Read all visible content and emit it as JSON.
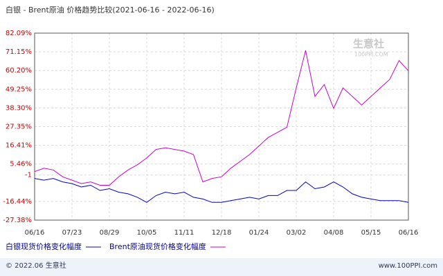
{
  "chart_data": {
    "type": "line",
    "title": "白银 - Brent原油 价格趋势比较(2021-06-16 - 2022-06-16)",
    "categories": [
      "06/16",
      null,
      null,
      null,
      "07/23",
      null,
      null,
      null,
      "08/29",
      null,
      null,
      null,
      "10/05",
      null,
      null,
      null,
      "11/11",
      null,
      null,
      null,
      "12/18",
      null,
      null,
      null,
      "01/24",
      null,
      null,
      null,
      "03/02",
      null,
      null,
      null,
      "04/08",
      null,
      null,
      null,
      "05/15",
      null,
      null,
      null,
      "06/16"
    ],
    "series": [
      {
        "name": "白银现货价格变化幅度",
        "color": "#0000cc",
        "values": [
          -3,
          -4,
          -3,
          -5,
          -6,
          -8,
          -7,
          -10,
          -9,
          -11,
          -12,
          -14,
          -17,
          -13,
          -11,
          -12,
          -11,
          -14,
          -15,
          -17,
          -17,
          -16,
          -15,
          -14,
          -15,
          -13,
          -13,
          -10,
          -10,
          -5,
          -9,
          -8,
          -5,
          -8,
          -12,
          -14,
          -15,
          -16,
          -16,
          -16,
          -17
        ]
      },
      {
        "name": "Brent原油现货价格变化幅度",
        "color": "#cc00cc",
        "values": [
          1,
          3,
          2,
          -2,
          -4,
          -6,
          -5,
          -7,
          -7,
          -2,
          2,
          5,
          9,
          14,
          15,
          14,
          13,
          11,
          -5,
          -3,
          -2,
          3,
          7,
          11,
          16,
          21,
          24,
          27,
          50,
          72,
          45,
          52,
          38,
          50,
          45,
          40,
          45,
          50,
          55,
          66,
          60
        ]
      }
    ],
    "ylim": [
      -27.38,
      82.09
    ],
    "yticks": [
      {
        "value": -27.38,
        "label": "-27.38%"
      },
      {
        "value": -16.44,
        "label": "-16.44%"
      },
      -1,
      {
        "value": 5.46,
        "label": "5.46%"
      },
      {
        "value": 16.41,
        "label": "16.41%"
      },
      {
        "value": 27.35,
        "label": "27.35%"
      },
      {
        "value": 38.3,
        "label": "38.30%"
      },
      {
        "value": 49.25,
        "label": "49.25%"
      },
      {
        "value": 60.2,
        "label": "60.20%"
      },
      {
        "value": 71.15,
        "label": "71.15%"
      },
      {
        "value": 82.09,
        "label": "82.09%"
      }
    ],
    "grid": true
  },
  "watermark": {
    "name": "生意社",
    "site": "100PPI.COM"
  },
  "footer": {
    "left": "© 2022.06 生意社",
    "right": "www.100PPI.com"
  }
}
